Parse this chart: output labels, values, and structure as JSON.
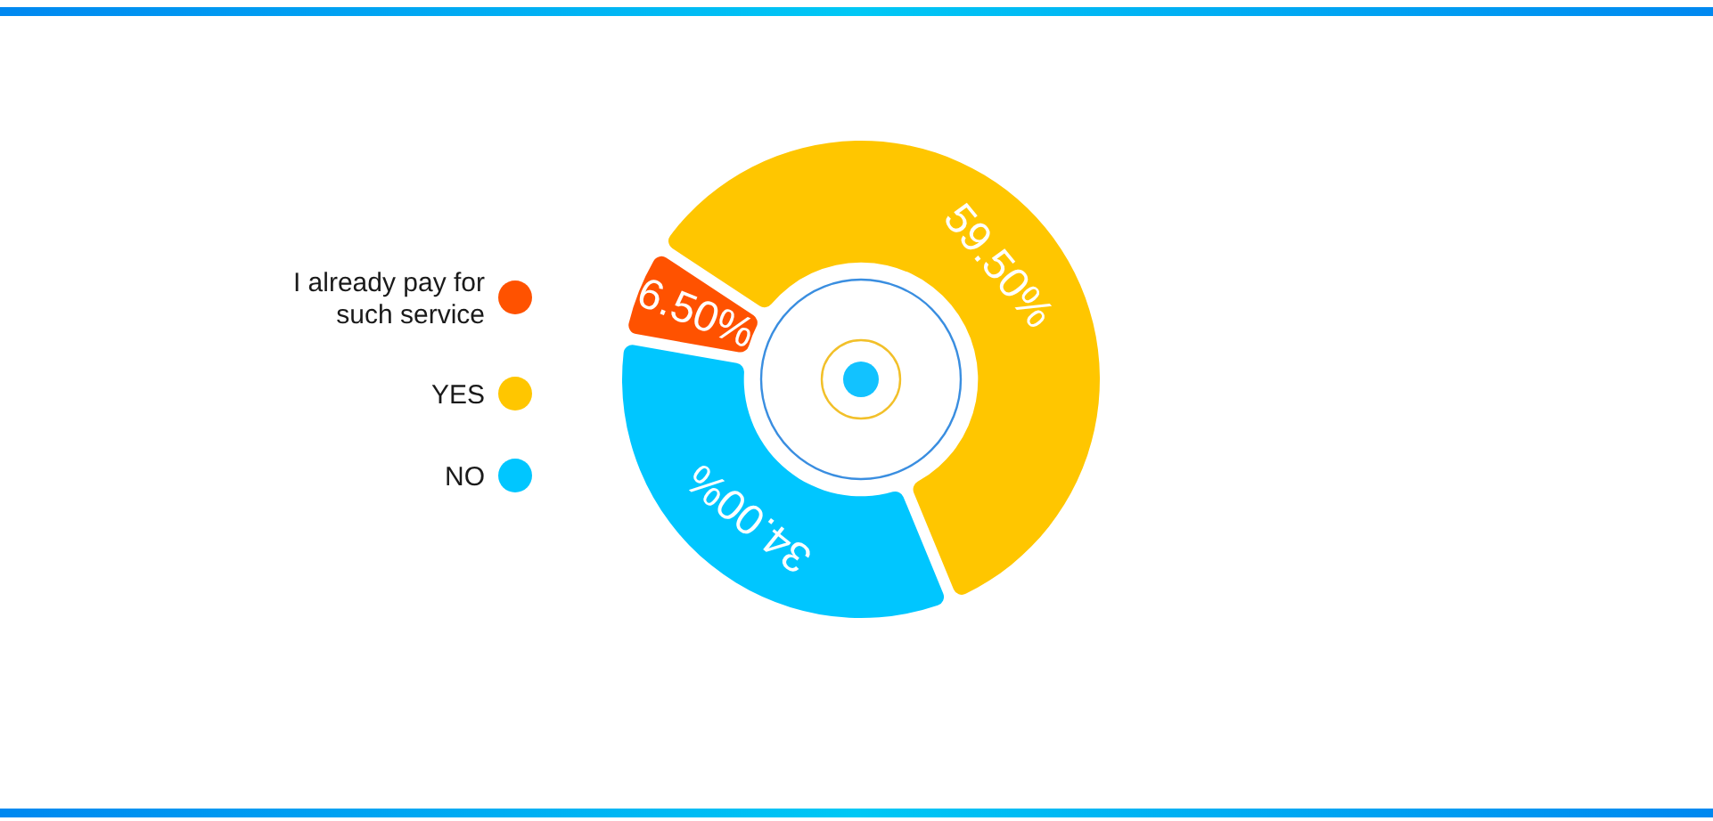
{
  "chart_data": {
    "type": "donut",
    "categories": [
      "I already pay for such service",
      "YES",
      "NO"
    ],
    "values": [
      6.5,
      59.5,
      34
    ],
    "colors": [
      "#ff5200",
      "#ffc600",
      "#00c6ff"
    ],
    "value_labels": [
      "6.50%",
      "59.50%",
      "34.00%"
    ],
    "legend": "left"
  }
}
